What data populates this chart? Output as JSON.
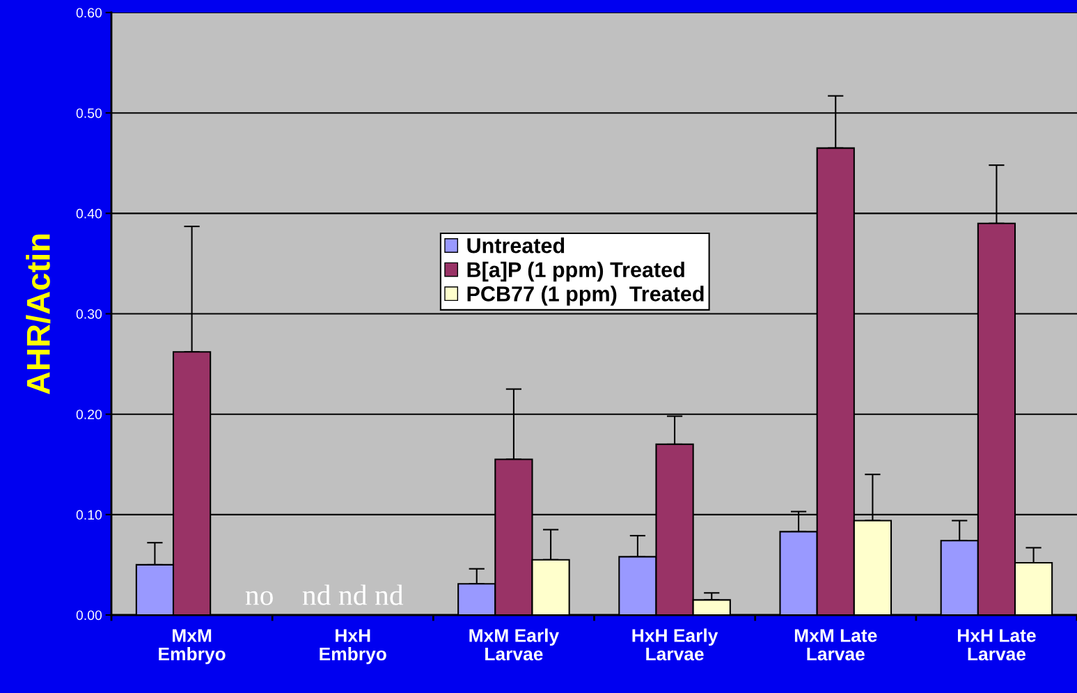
{
  "chart_data": {
    "type": "bar",
    "ylabel": "AHR/Actin",
    "categories": [
      "MxM\nEmbryo",
      "HxH\nEmbryo",
      "MxM Early\nLarvae",
      "HxH Early\nLarvae",
      "MxM Late\nLarvae",
      "HxH Late\nLarvae"
    ],
    "series": [
      {
        "name": "Untreated",
        "color": "#9999ff",
        "values": [
          0.05,
          null,
          0.031,
          0.058,
          0.083,
          0.074
        ],
        "errors": [
          [
            0.05,
            0.072
          ],
          null,
          [
            0.031,
            0.046
          ],
          [
            0.058,
            0.079
          ],
          [
            0.083,
            0.103
          ],
          [
            0.074,
            0.094
          ]
        ]
      },
      {
        "name": "B[a]P (1 ppm) Treated",
        "color": "#993366",
        "values": [
          0.262,
          null,
          0.155,
          0.17,
          0.465,
          0.39
        ],
        "errors": [
          [
            0.262,
            0.387
          ],
          null,
          [
            0.155,
            0.225
          ],
          [
            0.17,
            0.198
          ],
          [
            0.465,
            0.517
          ],
          [
            0.39,
            0.448
          ]
        ]
      },
      {
        "name": "PCB77 (1 ppm)  Treated",
        "color": "#ffffcc",
        "values": [
          null,
          null,
          0.055,
          0.015,
          0.094,
          0.052
        ],
        "errors": [
          null,
          null,
          [
            0.055,
            0.085
          ],
          [
            0.015,
            0.022
          ],
          [
            0.094,
            0.14
          ],
          [
            0.052,
            0.067
          ]
        ]
      }
    ],
    "annotations": [
      "no",
      "nd nd nd"
    ],
    "ylim": [
      0,
      0.6
    ],
    "yticks": [
      {
        "value": 0,
        "label": "0.00"
      },
      {
        "value": 0.1,
        "label": "0.10"
      },
      {
        "value": 0.2,
        "label": "0.20"
      },
      {
        "value": 0.3,
        "label": "0.30"
      },
      {
        "value": 0.4,
        "label": "0.40"
      },
      {
        "value": 0.5,
        "label": "0.50"
      },
      {
        "value": 0.6,
        "label": "0.60"
      }
    ],
    "grid": "y",
    "legend": "center"
  }
}
